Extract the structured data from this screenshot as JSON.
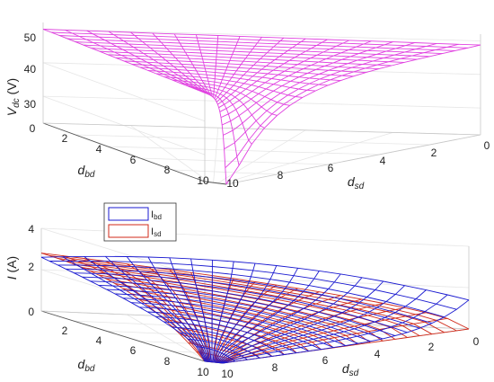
{
  "chart_data": [
    {
      "type": "surface",
      "xlabel": {
        "main": "d",
        "sub": "sd"
      },
      "ylabel": {
        "main": "d",
        "sub": "bd"
      },
      "zlabel": {
        "main": "V",
        "sub": "dc",
        "unit": " (V)"
      },
      "x_ticks": [
        "0",
        "2",
        "4",
        "6",
        "8",
        "10"
      ],
      "y_ticks": [
        "0",
        "2",
        "4",
        "6",
        "8",
        "10"
      ],
      "z_ticks": [
        "30",
        "40",
        "50"
      ],
      "x_range": [
        0,
        10
      ],
      "y_range": [
        0,
        10
      ],
      "z_range": [
        22,
        52
      ],
      "grid_n": 20,
      "grid": true,
      "color": "#e040e0",
      "surface_description": "Vdc rises from about 22 V near (dsd, dbd) = (9.5, 9.5) toward about 50 V over most of the domain",
      "series": [
        {
          "name": "",
          "formula_points": [
            {
              "dsd": 0,
              "dbd": 0,
              "v": 50
            },
            {
              "dsd": 10,
              "dbd": 0,
              "v": 48
            },
            {
              "dsd": 0,
              "dbd": 10,
              "v": 48
            },
            {
              "dsd": 9.5,
              "dbd": 9.5,
              "v": 22
            },
            {
              "dsd": 10,
              "dbd": 10,
              "v": 30
            }
          ]
        }
      ]
    },
    {
      "type": "surface",
      "xlabel": {
        "main": "d",
        "sub": "sd"
      },
      "ylabel": {
        "main": "d",
        "sub": "bd"
      },
      "zlabel": {
        "main": "I",
        "sub": "",
        "unit": " (A)"
      },
      "x_ticks": [
        "0",
        "2",
        "4",
        "6",
        "8",
        "10"
      ],
      "y_ticks": [
        "2",
        "4",
        "6",
        "8",
        "10"
      ],
      "z_ticks": [
        "0",
        "2",
        "4"
      ],
      "x_range": [
        0,
        10
      ],
      "y_range": [
        0,
        10
      ],
      "z_range": [
        0,
        4
      ],
      "grid": true,
      "legend_position": "top-left",
      "series": [
        {
          "name": "I",
          "name_sub": "bd",
          "color": "#1a1ad0",
          "corner_values": {
            "dsd0_dbd0": 2.6,
            "dsd10_dbd0": 4.0,
            "dsd0_dbd10": 0.0,
            "dsd10_dbd10": 0.0
          }
        },
        {
          "name": "I",
          "name_sub": "sd",
          "color": "#d02a1a",
          "corner_values": {
            "dsd0_dbd0": 2.6,
            "dsd10_dbd0": 0.0,
            "dsd0_dbd10": 0.0,
            "dsd10_dbd10": 4.0
          }
        }
      ]
    }
  ]
}
